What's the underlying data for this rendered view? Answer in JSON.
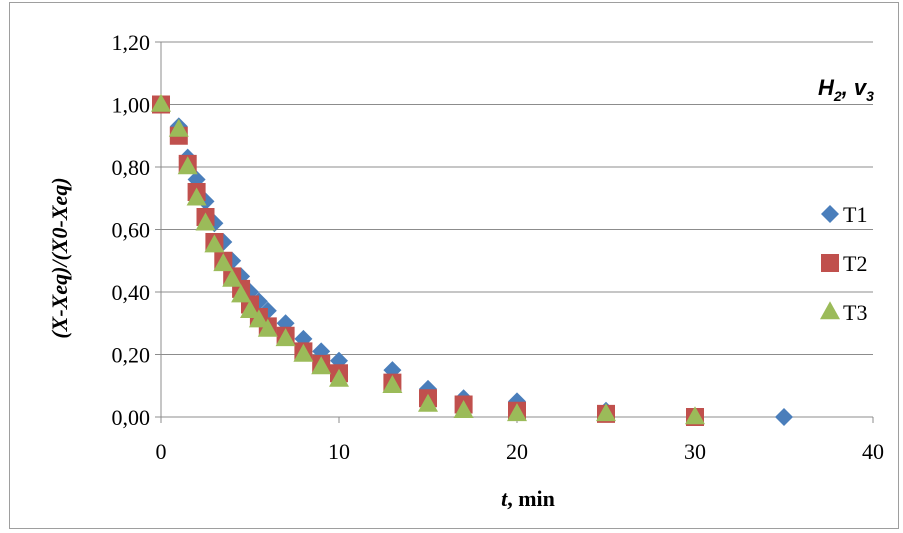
{
  "chart_data": {
    "type": "scatter",
    "title": "",
    "xlabel_var": "t",
    "xlabel_rest": ", min",
    "ylabel": "(X-Xeq)/(X0-Xeq)",
    "annotation": {
      "base1": "H",
      "sub1": "2",
      "sep": ", ",
      "base2": "v",
      "sub2": "3"
    },
    "xlim": [
      0,
      40
    ],
    "ylim": [
      0,
      1.2
    ],
    "xticks": [
      "0",
      "10",
      "20",
      "30",
      "40"
    ],
    "yticks": [
      "0,00",
      "0,20",
      "0,40",
      "0,60",
      "0,80",
      "1,00",
      "1,20"
    ],
    "grid": "horizontal",
    "legend_position": "right",
    "series": [
      {
        "name": "T1",
        "marker": "diamond",
        "color": "#4a7ebb",
        "points": [
          [
            0,
            1.0
          ],
          [
            1,
            0.93
          ],
          [
            1.5,
            0.83
          ],
          [
            2,
            0.76
          ],
          [
            2.5,
            0.69
          ],
          [
            3,
            0.62
          ],
          [
            3.5,
            0.56
          ],
          [
            4,
            0.5
          ],
          [
            4.5,
            0.45
          ],
          [
            5,
            0.4
          ],
          [
            5.5,
            0.37
          ],
          [
            6,
            0.34
          ],
          [
            7,
            0.3
          ],
          [
            8,
            0.25
          ],
          [
            9,
            0.21
          ],
          [
            10,
            0.18
          ],
          [
            13,
            0.15
          ],
          [
            15,
            0.09
          ],
          [
            17,
            0.06
          ],
          [
            20,
            0.05
          ],
          [
            25,
            0.02
          ],
          [
            30,
            0.0
          ],
          [
            35,
            0.0
          ]
        ]
      },
      {
        "name": "T2",
        "marker": "square",
        "color": "#c0504d",
        "points": [
          [
            0,
            1.0
          ],
          [
            1,
            0.9
          ],
          [
            1.5,
            0.81
          ],
          [
            2,
            0.72
          ],
          [
            2.5,
            0.64
          ],
          [
            3,
            0.56
          ],
          [
            3.5,
            0.5
          ],
          [
            4,
            0.45
          ],
          [
            4.5,
            0.41
          ],
          [
            5,
            0.36
          ],
          [
            5.5,
            0.32
          ],
          [
            6,
            0.29
          ],
          [
            7,
            0.26
          ],
          [
            8,
            0.21
          ],
          [
            9,
            0.17
          ],
          [
            10,
            0.14
          ],
          [
            13,
            0.11
          ],
          [
            15,
            0.06
          ],
          [
            17,
            0.04
          ],
          [
            20,
            0.02
          ],
          [
            25,
            0.01
          ],
          [
            30,
            0.0
          ]
        ]
      },
      {
        "name": "T3",
        "marker": "triangle",
        "color": "#9bbb59",
        "points": [
          [
            0,
            1.0
          ],
          [
            1,
            0.92
          ],
          [
            1.5,
            0.8
          ],
          [
            2,
            0.7
          ],
          [
            2.5,
            0.62
          ],
          [
            3,
            0.55
          ],
          [
            3.5,
            0.49
          ],
          [
            4,
            0.44
          ],
          [
            4.5,
            0.39
          ],
          [
            5,
            0.34
          ],
          [
            5.5,
            0.31
          ],
          [
            6,
            0.28
          ],
          [
            7,
            0.25
          ],
          [
            8,
            0.2
          ],
          [
            9,
            0.16
          ],
          [
            10,
            0.12
          ],
          [
            13,
            0.1
          ],
          [
            15,
            0.04
          ],
          [
            17,
            0.02
          ],
          [
            20,
            0.01
          ],
          [
            25,
            0.01
          ],
          [
            30,
            0.0
          ]
        ]
      }
    ]
  }
}
